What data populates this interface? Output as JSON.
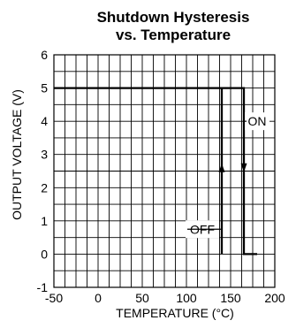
{
  "chart_data": {
    "type": "line",
    "title_line1": "Shutdown Hysteresis",
    "title_line2": "vs. Temperature",
    "xlabel": "TEMPERATURE (°C)",
    "ylabel": "OUTPUT VOLTAGE (V)",
    "xlim": [
      -50,
      200
    ],
    "ylim": [
      -1,
      6
    ],
    "x_ticks": [
      -50,
      0,
      50,
      100,
      150,
      200
    ],
    "x_tick_labels": [
      "-50",
      "0",
      "50",
      "100",
      "150",
      "200"
    ],
    "y_ticks": [
      -1,
      0,
      1,
      2,
      3,
      4,
      5,
      6
    ],
    "y_tick_labels": [
      "-1",
      "0",
      "1",
      "2",
      "3",
      "4",
      "5",
      "6"
    ],
    "grid": true,
    "series": [
      {
        "x": [
          -50,
          165,
          165,
          180
        ],
        "y": [
          5,
          5,
          0,
          0
        ]
      },
      {
        "x": [
          140,
          140
        ],
        "y": [
          0,
          5
        ]
      }
    ],
    "annotations": [
      {
        "text": "ON",
        "x": 180,
        "y": 4,
        "points_to": {
          "x": 165,
          "y": 4
        }
      },
      {
        "text": "OFF",
        "x": 118,
        "y": 0.75,
        "points_to": {
          "x": 140,
          "y": 0.75
        }
      }
    ],
    "arrows": [
      {
        "x": 140,
        "y": 2.6,
        "direction": "up"
      },
      {
        "x": 165,
        "y": 2.6,
        "direction": "down"
      }
    ],
    "line_color": "#000000"
  }
}
